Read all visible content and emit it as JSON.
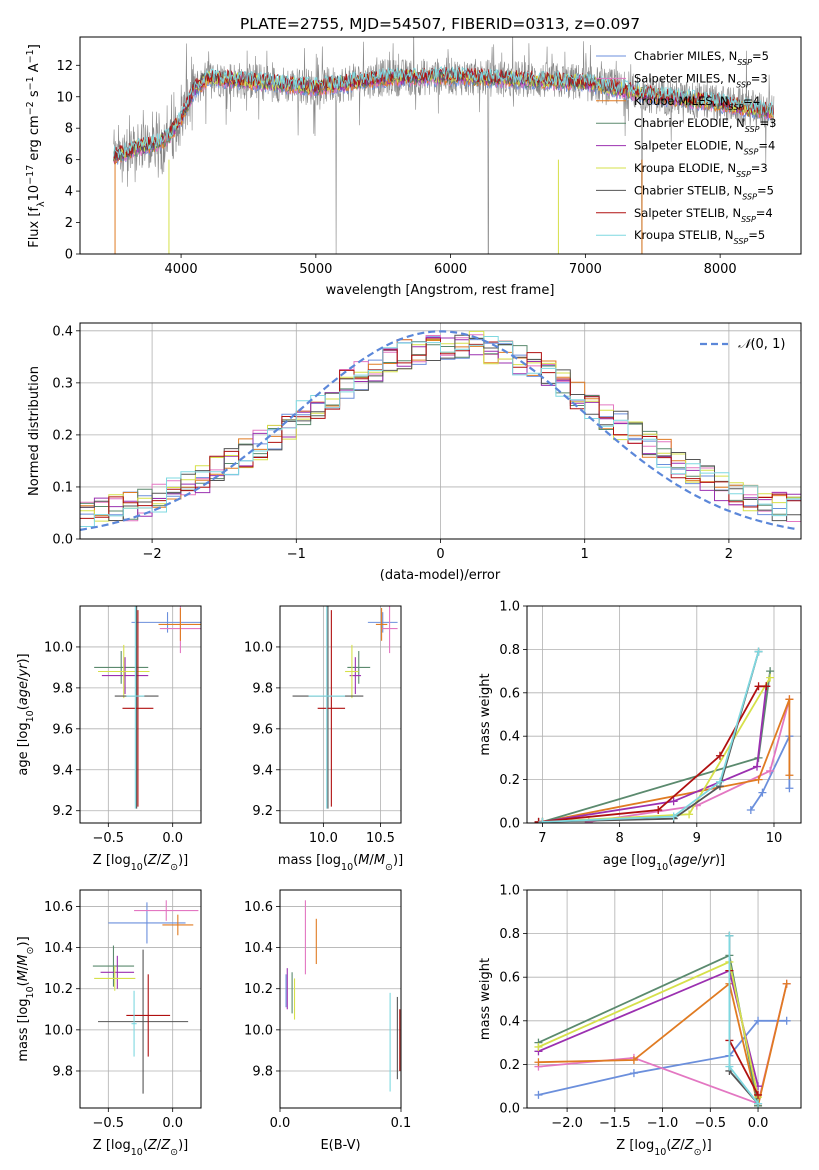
{
  "figure": {
    "title": "PLATE=2755, MJD=54507, FIBERID=0313, z=0.097"
  },
  "colors": {
    "Chabrier MILES": "#6b8fdc",
    "Salpeter MILES": "#e377c2",
    "Kroupa MILES": "#e07b22",
    "Chabrier ELODIE": "#5b8a6e",
    "Salpeter ELODIE": "#9b30b0",
    "Kroupa ELODIE": "#d6e04a",
    "Chabrier STELIB": "#555555",
    "Salpeter STELIB": "#b01010",
    "Kroupa STELIB": "#7fd8e0",
    "data": "#888888",
    "gauss": "#5b87d9"
  },
  "chart_data": [
    {
      "type": "line",
      "name": "spectrum",
      "title": "PLATE=2755, MJD=54507, FIBERID=0313, z=0.097",
      "xlabel": "wavelength [Angstrom, rest frame]",
      "ylabel": "Flux [f_λ 10^-17 erg cm^-2 s^-1 A^-1]",
      "xlim": [
        3250,
        8600
      ],
      "ylim": [
        0,
        13.8
      ],
      "xticks": [
        4000,
        5000,
        6000,
        7000,
        8000
      ],
      "yticks": [
        0,
        2,
        4,
        6,
        8,
        10,
        12
      ],
      "grid": false,
      "legend": "right",
      "legend_labels": [
        "Chabrier MILES, N_SSP=5",
        "Salpeter MILES, N_SSP=3",
        "Kroupa MILES, N_SSP=4",
        "Chabrier ELODIE, N_SSP=3",
        "Salpeter ELODIE, N_SSP=4",
        "Kroupa ELODIE, N_SSP=3",
        "Chabrier STELIB, N_SSP=5",
        "Salpeter STELIB, N_SSP=4",
        "Kroupa STELIB, N_SSP=5"
      ],
      "continuum": {
        "x": [
          3500,
          3600,
          3700,
          3800,
          3900,
          4000,
          4100,
          4200,
          4500,
          5000,
          5500,
          6000,
          6500,
          7000,
          7500,
          8000,
          8400
        ],
        "y": [
          6.2,
          6.5,
          6.8,
          7.0,
          7.4,
          8.6,
          10.5,
          11.2,
          11.0,
          10.6,
          11.2,
          11.3,
          11.1,
          10.9,
          10.1,
          9.6,
          9.0
        ]
      }
    },
    {
      "type": "line",
      "name": "residuals",
      "xlabel": "(data-model)/error",
      "ylabel": "Normed distribution",
      "xlim": [
        -2.5,
        2.5
      ],
      "ylim": [
        0,
        0.415
      ],
      "xticks": [
        -2,
        -1,
        0,
        1,
        2
      ],
      "yticks": [
        0.0,
        0.1,
        0.2,
        0.3,
        0.4
      ],
      "grid": true,
      "legend": "top-right",
      "legend_label": "N(0,1)",
      "bin_width": 0.1
    },
    {
      "type": "scatter",
      "name": "Z-age",
      "xlabel": "Z [log10(Z/Z☉)]",
      "ylabel": "age [log10(age/yr)]",
      "xlim": [
        -0.72,
        0.22
      ],
      "ylim": [
        9.14,
        10.2
      ],
      "xticks": [
        -0.5,
        0.0
      ],
      "yticks": [
        9.2,
        9.4,
        9.6,
        9.8,
        10.0
      ],
      "grid": true,
      "points": [
        {
          "m": "Chabrier MILES",
          "x": -0.04,
          "xe": 0.28,
          "y": 10.12,
          "ye": 0.05
        },
        {
          "m": "Salpeter MILES",
          "x": 0.06,
          "xe": 0.16,
          "y": 10.09,
          "ye": 0.12
        },
        {
          "m": "Kroupa MILES",
          "x": 0.06,
          "xe": 0.17,
          "y": 10.11,
          "ye": 0.08
        },
        {
          "m": "Chabrier ELODIE",
          "x": -0.4,
          "xe": 0.21,
          "y": 9.9,
          "ye": 0.08
        },
        {
          "m": "Salpeter ELODIE",
          "x": -0.37,
          "xe": 0.18,
          "y": 9.86,
          "ye": 0.09
        },
        {
          "m": "Kroupa ELODIE",
          "x": -0.38,
          "xe": 0.2,
          "y": 9.88,
          "ye": 0.13
        },
        {
          "m": "Chabrier STELIB",
          "x": -0.28,
          "xe": 0.17,
          "y": 9.76,
          "ye": 0.55
        },
        {
          "m": "Salpeter STELIB",
          "x": -0.27,
          "xe": 0.12,
          "y": 9.7,
          "ye": 0.48
        },
        {
          "m": "Kroupa STELIB",
          "x": -0.29,
          "xe": 0.07,
          "y": 9.76,
          "ye": 0.55
        }
      ]
    },
    {
      "type": "scatter",
      "name": "mass-age",
      "xlabel": "mass [log10(M/M☉)]",
      "ylabel": "",
      "xlim": [
        9.62,
        10.68
      ],
      "ylim": [
        9.14,
        10.2
      ],
      "xticks": [
        10.0,
        10.5
      ],
      "yticks": [
        9.2,
        9.4,
        9.6,
        9.8,
        10.0
      ],
      "grid": true,
      "points": [
        {
          "m": "Chabrier MILES",
          "x": 10.52,
          "xe": 0.13,
          "y": 10.12,
          "ye": 0.05
        },
        {
          "m": "Salpeter MILES",
          "x": 10.58,
          "xe": 0.07,
          "y": 10.09,
          "ye": 0.12
        },
        {
          "m": "Kroupa MILES",
          "x": 10.51,
          "xe": 0.05,
          "y": 10.11,
          "ye": 0.08
        },
        {
          "m": "Chabrier ELODIE",
          "x": 10.31,
          "xe": 0.1,
          "y": 9.9,
          "ye": 0.08
        },
        {
          "m": "Salpeter ELODIE",
          "x": 10.28,
          "xe": 0.05,
          "y": 9.86,
          "ye": 0.09
        },
        {
          "m": "Kroupa ELODIE",
          "x": 10.25,
          "xe": 0.06,
          "y": 9.88,
          "ye": 0.13
        },
        {
          "m": "Chabrier STELIB",
          "x": 10.04,
          "xe": 0.31,
          "y": 9.76,
          "ye": 0.55
        },
        {
          "m": "Salpeter STELIB",
          "x": 10.07,
          "xe": 0.12,
          "y": 9.7,
          "ye": 0.48
        },
        {
          "m": "Kroupa STELIB",
          "x": 10.03,
          "xe": 0.16,
          "y": 9.76,
          "ye": 0.55
        }
      ]
    },
    {
      "type": "line",
      "name": "age-weight",
      "xlabel": "age [log10(age/yr)]",
      "ylabel": "mass weight",
      "xlim": [
        6.8,
        10.35
      ],
      "ylim": [
        0,
        1.0
      ],
      "xticks": [
        7,
        8,
        9,
        10
      ],
      "yticks": [
        0.0,
        0.2,
        0.4,
        0.6,
        0.8,
        1.0
      ],
      "grid": true,
      "series": [
        {
          "m": "Chabrier MILES",
          "x": [
            9.7,
            9.85,
            10.2,
            10.2
          ],
          "y": [
            0.06,
            0.14,
            0.4,
            0.16
          ]
        },
        {
          "m": "Salpeter MILES",
          "x": [
            7.6,
            9.0,
            9.95,
            10.2
          ],
          "y": [
            0.005,
            0.08,
            0.24,
            0.57
          ]
        },
        {
          "m": "Kroupa MILES",
          "x": [
            7.0,
            9.8,
            10.2,
            10.2
          ],
          "y": [
            0.005,
            0.2,
            0.57,
            0.22
          ]
        },
        {
          "m": "Chabrier ELODIE",
          "x": [
            7.0,
            9.8,
            9.95
          ],
          "y": [
            0.005,
            0.3,
            0.7
          ]
        },
        {
          "m": "Salpeter ELODIE",
          "x": [
            7.0,
            8.7,
            9.78,
            9.9
          ],
          "y": [
            0.005,
            0.1,
            0.26,
            0.63
          ]
        },
        {
          "m": "Kroupa ELODIE",
          "x": [
            7.0,
            8.9,
            9.95
          ],
          "y": [
            0.005,
            0.04,
            0.67
          ]
        },
        {
          "m": "Chabrier STELIB",
          "x": [
            6.95,
            8.7,
            9.3,
            9.8
          ],
          "y": [
            0.005,
            0.02,
            0.17,
            0.79
          ]
        },
        {
          "m": "Salpeter STELIB",
          "x": [
            6.95,
            8.5,
            9.3,
            9.8,
            9.9
          ],
          "y": [
            0.005,
            0.06,
            0.31,
            0.63,
            0.63
          ]
        },
        {
          "m": "Kroupa STELIB",
          "x": [
            7.0,
            8.7,
            9.3,
            9.8
          ],
          "y": [
            0.005,
            0.03,
            0.19,
            0.79
          ]
        }
      ]
    },
    {
      "type": "scatter",
      "name": "Z-mass",
      "xlabel": "Z [log10(Z/Z☉)]",
      "ylabel": "mass [log10(M/M☉)]",
      "xlim": [
        -0.72,
        0.22
      ],
      "ylim": [
        9.62,
        10.68
      ],
      "xticks": [
        -0.5,
        0.0
      ],
      "yticks": [
        9.8,
        10.0,
        10.2,
        10.4,
        10.6
      ],
      "grid": true,
      "points": [
        {
          "m": "Chabrier MILES",
          "x": -0.2,
          "xe": 0.3,
          "y": 10.52,
          "ye": 0.1
        },
        {
          "m": "Salpeter MILES",
          "x": -0.05,
          "xe": 0.25,
          "y": 10.58,
          "ye": 0.05
        },
        {
          "m": "Kroupa MILES",
          "x": 0.04,
          "xe": 0.12,
          "y": 10.51,
          "ye": 0.05
        },
        {
          "m": "Chabrier ELODIE",
          "x": -0.46,
          "xe": 0.16,
          "y": 10.31,
          "ye": 0.1
        },
        {
          "m": "Salpeter ELODIE",
          "x": -0.43,
          "xe": 0.13,
          "y": 10.28,
          "ye": 0.08
        },
        {
          "m": "Kroupa ELODIE",
          "x": -0.45,
          "xe": 0.16,
          "y": 10.25,
          "ye": 0.06
        },
        {
          "m": "Chabrier STELIB",
          "x": -0.23,
          "xe": 0.35,
          "y": 10.04,
          "ye": 0.35
        },
        {
          "m": "Salpeter STELIB",
          "x": -0.19,
          "xe": 0.17,
          "y": 10.07,
          "ye": 0.2
        },
        {
          "m": "Kroupa STELIB",
          "x": -0.3,
          "xe": 0.02,
          "y": 10.03,
          "ye": 0.16
        }
      ]
    },
    {
      "type": "scatter",
      "name": "EBV-mass",
      "xlabel": "E(B-V)",
      "ylabel": "",
      "xlim": [
        0.0,
        0.1
      ],
      "ylim": [
        9.62,
        10.68
      ],
      "xticks": [
        0.0,
        0.1
      ],
      "yticks": [
        9.8,
        10.0,
        10.2,
        10.4,
        10.6
      ],
      "grid": true,
      "points": [
        {
          "m": "Chabrier MILES",
          "x": 0.005,
          "y": 10.19,
          "ye": 0.08
        },
        {
          "m": "Salpeter MILES",
          "x": 0.021,
          "y": 10.45,
          "ye": 0.18
        },
        {
          "m": "Kroupa MILES",
          "x": 0.03,
          "y": 10.43,
          "ye": 0.11
        },
        {
          "m": "Chabrier ELODIE",
          "x": 0.01,
          "y": 10.18,
          "ye": 0.1
        },
        {
          "m": "Salpeter ELODIE",
          "x": 0.006,
          "y": 10.2,
          "ye": 0.1
        },
        {
          "m": "Kroupa ELODIE",
          "x": 0.012,
          "y": 10.15,
          "ye": 0.1
        },
        {
          "m": "Chabrier STELIB",
          "x": 0.097,
          "y": 9.96,
          "ye": 0.2
        },
        {
          "m": "Salpeter STELIB",
          "x": 0.099,
          "y": 9.95,
          "ye": 0.15
        },
        {
          "m": "Kroupa STELIB",
          "x": 0.091,
          "y": 9.94,
          "ye": 0.24
        }
      ]
    },
    {
      "type": "line",
      "name": "Z-weight",
      "xlabel": "Z [log10(Z/Z☉)]",
      "ylabel": "mass weight",
      "xlim": [
        -2.42,
        0.45
      ],
      "ylim": [
        0,
        1.0
      ],
      "xticks": [
        -2.0,
        -1.5,
        -1.0,
        -0.5,
        0.0
      ],
      "yticks": [
        0.0,
        0.2,
        0.4,
        0.6,
        0.8,
        1.0
      ],
      "grid": true,
      "series": [
        {
          "m": "Chabrier MILES",
          "x": [
            -2.3,
            -1.3,
            -0.3,
            0.0,
            0.3
          ],
          "y": [
            0.06,
            0.16,
            0.24,
            0.4,
            0.4
          ]
        },
        {
          "m": "Salpeter MILES",
          "x": [
            -2.3,
            -1.3,
            0.0,
            0.3
          ],
          "y": [
            0.19,
            0.23,
            0.02,
            0.57
          ]
        },
        {
          "m": "Kroupa MILES",
          "x": [
            -2.3,
            -1.3,
            -0.3,
            0.0,
            0.3
          ],
          "y": [
            0.21,
            0.22,
            0.57,
            0.01,
            0.57
          ]
        },
        {
          "m": "Chabrier ELODIE",
          "x": [
            -2.3,
            -0.3,
            0.0
          ],
          "y": [
            0.3,
            0.7,
            0.01
          ]
        },
        {
          "m": "Salpeter ELODIE",
          "x": [
            -2.3,
            -0.3,
            0.0
          ],
          "y": [
            0.26,
            0.63,
            0.1
          ]
        },
        {
          "m": "Kroupa ELODIE",
          "x": [
            -2.3,
            -0.3,
            0.0
          ],
          "y": [
            0.28,
            0.67,
            0.05
          ]
        },
        {
          "m": "Chabrier STELIB",
          "x": [
            -0.3,
            -0.3,
            0.0
          ],
          "y": [
            0.79,
            0.17,
            0.02
          ]
        },
        {
          "m": "Salpeter STELIB",
          "x": [
            -0.3,
            -0.3,
            0.0
          ],
          "y": [
            0.63,
            0.31,
            0.06
          ]
        },
        {
          "m": "Kroupa STELIB",
          "x": [
            -0.3,
            -0.3,
            0.0
          ],
          "y": [
            0.79,
            0.19,
            0.02
          ]
        }
      ]
    }
  ]
}
